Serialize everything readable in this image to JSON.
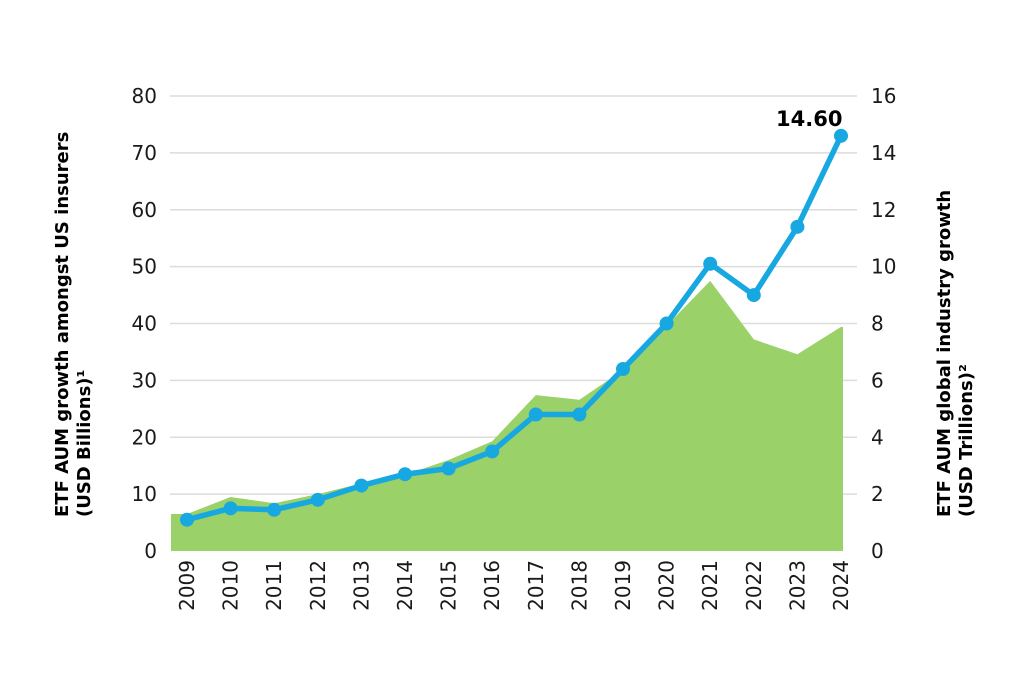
{
  "chart_data": {
    "type": "area+line dual-axis combo",
    "background": "#ffffff",
    "categories": [
      "2009",
      "2010",
      "2011",
      "2012",
      "2013",
      "2014",
      "2015",
      "2016",
      "2017",
      "2018",
      "2019",
      "2020",
      "2021",
      "2022",
      "2023",
      "2024"
    ],
    "series": [
      {
        "name": "ETF AUM growth amongst US insurers (USD Billions)",
        "type": "area",
        "axis": "left",
        "color": "#9ad168",
        "values": [
          6.5,
          9.5,
          8.4,
          10.0,
          11.9,
          13.4,
          16.0,
          19.3,
          27.4,
          26.6,
          31.8,
          39.6,
          47.5,
          37.2,
          34.6,
          39.4
        ]
      },
      {
        "name": "ETF AUM global industry growth (USD Trillions)",
        "type": "line",
        "axis": "right",
        "color": "#18a8e1",
        "values": [
          1.1,
          1.5,
          1.45,
          1.8,
          2.3,
          2.7,
          2.9,
          3.5,
          4.8,
          4.8,
          6.4,
          8.0,
          10.1,
          9.0,
          11.4,
          14.6
        ]
      }
    ],
    "left_axis": {
      "title_line1": "ETF AUM growth amongst US insurers",
      "title_line2": "(USD Billions)¹",
      "min": 0,
      "max": 80,
      "ticks": [
        0,
        10,
        20,
        30,
        40,
        50,
        60,
        70,
        80
      ]
    },
    "right_axis": {
      "title_line1": "ETF AUM global industry growth",
      "title_line2": "(USD Trillions)²",
      "min": 0,
      "max": 16,
      "ticks": [
        0,
        2,
        4,
        6,
        8,
        10,
        12,
        14,
        16
      ]
    },
    "annotation": {
      "text": "14.60",
      "target_year": "2024"
    },
    "grid": {
      "horizontal": true,
      "vertical": false,
      "color": "#dcdcdc"
    },
    "legend": [
      {
        "swatch_color": "#9ad168",
        "label": "ETF AUM growth amongst US insurers (USD Billions)¹"
      },
      {
        "swatch_color": "#18a8e1",
        "label": "ETF AUM global industry growth (USD Trillions)²"
      }
    ]
  }
}
